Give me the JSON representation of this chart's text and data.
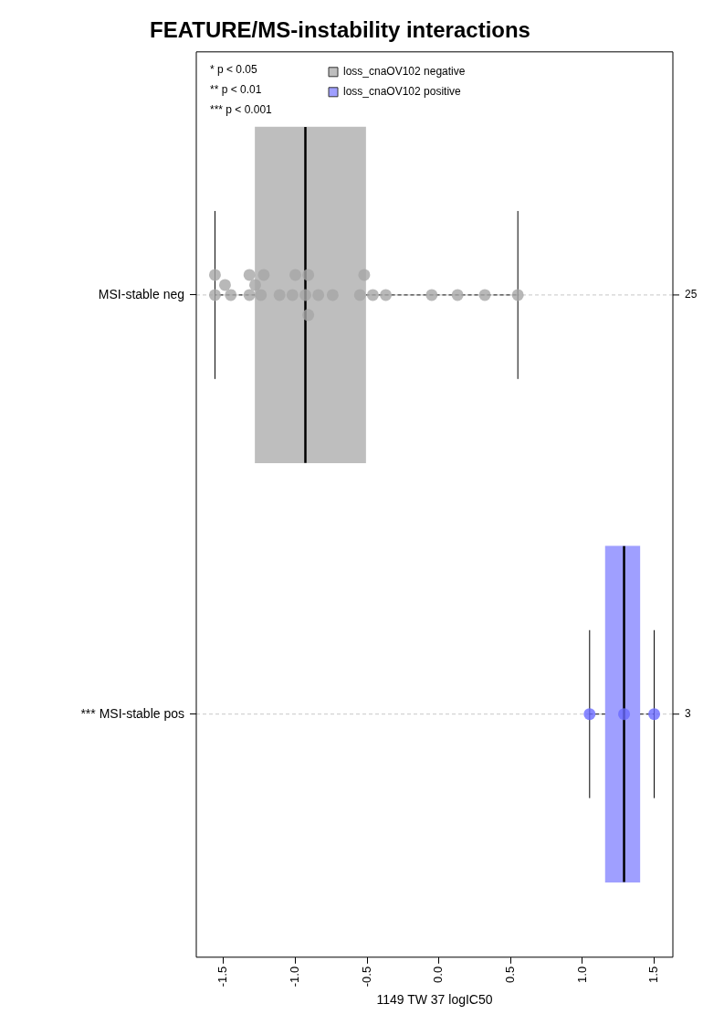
{
  "chart_data": {
    "type": "box",
    "orientation": "horizontal",
    "title": "FEATURE/MS-instability interactions",
    "xlabel": "1149 TW 37 logIC50",
    "categories": [
      "MSI-stable neg",
      "*** MSI-stable pos"
    ],
    "xlim": [
      -1.69,
      1.63
    ],
    "xticks": [
      {
        "value": -1.5,
        "label": "-1.5"
      },
      {
        "value": -1,
        "label": "-1.0"
      },
      {
        "value": -0.5,
        "label": "-0.5"
      },
      {
        "value": 0,
        "label": "0.0"
      },
      {
        "value": 0.5,
        "label": "0.5"
      },
      {
        "value": 1,
        "label": "1.0"
      },
      {
        "value": 1.5,
        "label": "1.5"
      }
    ],
    "grid": "y",
    "legend": "top left",
    "marker": "circle",
    "series": [
      {
        "name": "loss_cnaOV102 negative",
        "color": "#bebebe",
        "boxes": [
          {
            "low": -1.56,
            "q1": -1.28,
            "median": -0.93,
            "q3": -0.51,
            "high": 0.55
          },
          null
        ]
      },
      {
        "name": "loss_cnaOV102 positive",
        "color": "#9f9fff",
        "boxes": [
          null,
          {
            "low": 1.05,
            "q1": 1.16,
            "median": 1.29,
            "q3": 1.4,
            "high": 1.5
          }
        ]
      },
      {
        "type": "scatter",
        "color": "#a6a6a6",
        "x": [
          "MSI-stable neg",
          "MSI-stable neg",
          "MSI-stable neg",
          "MSI-stable neg",
          "MSI-stable neg",
          "MSI-stable neg",
          "MSI-stable neg",
          "MSI-stable neg",
          "MSI-stable neg",
          "MSI-stable neg",
          "MSI-stable neg",
          "MSI-stable neg",
          "MSI-stable neg",
          "MSI-stable neg",
          "MSI-stable neg",
          "MSI-stable neg",
          "MSI-stable neg",
          "MSI-stable neg",
          "MSI-stable neg",
          "MSI-stable neg",
          "MSI-stable neg",
          "MSI-stable neg",
          "MSI-stable neg",
          "MSI-stable neg",
          "MSI-stable neg"
        ],
        "values": [
          -1.56,
          -1.56,
          -1.49,
          -1.45,
          -1.32,
          -1.32,
          -1.28,
          -1.24,
          -1.22,
          -1.11,
          -1.02,
          -1.0,
          -0.93,
          -0.91,
          -0.91,
          -0.84,
          -0.74,
          -0.55,
          -0.52,
          -0.46,
          -0.37,
          -0.05,
          0.13,
          0.32,
          0.55
        ]
      },
      {
        "type": "scatter",
        "color": "#6a6aff",
        "x": [
          "*** MSI-stable pos",
          "*** MSI-stable pos",
          "*** MSI-stable pos"
        ],
        "values": [
          1.05,
          1.29,
          1.5
        ]
      }
    ],
    "annotations": [
      "* p < 0.05",
      "** p < 0.01",
      "*** p < 0.001",
      "25",
      "3"
    ]
  }
}
